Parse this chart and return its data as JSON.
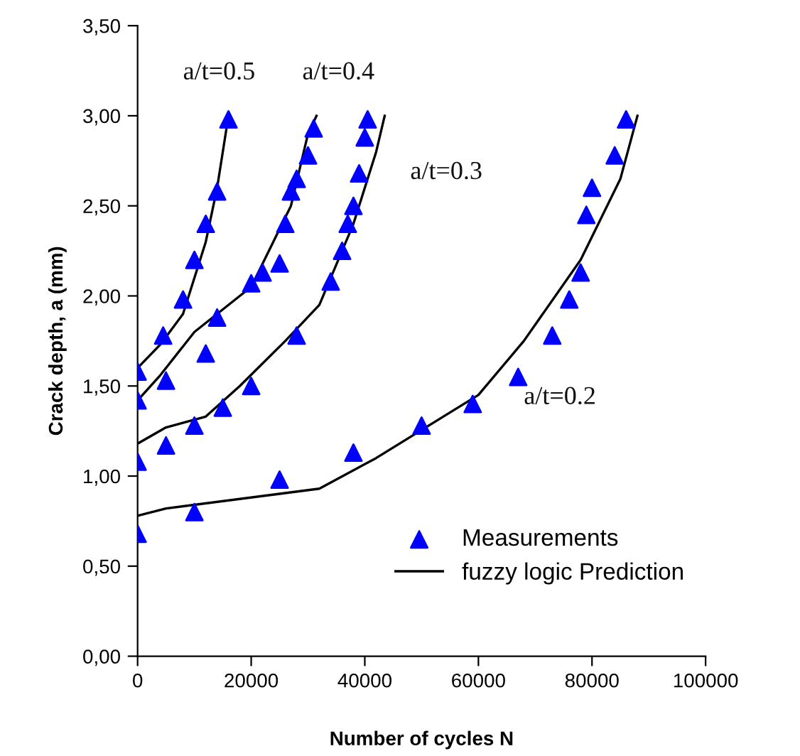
{
  "chart_data": {
    "type": "scatter",
    "xlabel": "Number of cycles N",
    "ylabel": "Crack depth, a (mm)",
    "xlim": [
      0,
      100000
    ],
    "ylim": [
      0,
      3.5
    ],
    "xticks": [
      0,
      20000,
      40000,
      60000,
      80000,
      100000
    ],
    "yticks": [
      {
        "value": 0,
        "label": "0,00"
      },
      {
        "value": 0.5,
        "label": "0,50"
      },
      {
        "value": 1,
        "label": "1,00"
      },
      {
        "value": 1.5,
        "label": "1,50"
      },
      {
        "value": 2,
        "label": "2,00"
      },
      {
        "value": 2.5,
        "label": "2,50"
      },
      {
        "value": 3,
        "label": "3,00"
      },
      {
        "value": 3.5,
        "label": "3,50"
      }
    ],
    "grid": false,
    "legend": "bottom right",
    "series": [
      {
        "name": "Measurements",
        "marker": "triangle",
        "color": "#0000ff",
        "x": [
          0,
          4500,
          8000,
          10000,
          12000,
          14000,
          16000
        ],
        "values": [
          1.58,
          1.78,
          1.98,
          2.2,
          2.4,
          2.58,
          2.98
        ]
      },
      {
        "marker": "triangle",
        "color": "#0000ff",
        "x": [
          0,
          5000,
          12000,
          14000,
          20000,
          22000,
          25000,
          26000,
          27000,
          28000,
          30000,
          31000
        ],
        "values": [
          1.42,
          1.53,
          1.68,
          1.88,
          2.07,
          2.13,
          2.18,
          2.4,
          2.58,
          2.65,
          2.78,
          2.93
        ]
      },
      {
        "marker": "triangle",
        "color": "#0000ff",
        "x": [
          0,
          5000,
          10000,
          15000,
          20000,
          28000,
          34000,
          36000,
          37000,
          38000,
          39000,
          40000,
          40500
        ],
        "values": [
          1.08,
          1.17,
          1.28,
          1.38,
          1.5,
          1.78,
          2.08,
          2.25,
          2.4,
          2.5,
          2.68,
          2.88,
          2.98
        ]
      },
      {
        "marker": "triangle",
        "color": "#0000ff",
        "x": [
          0,
          10000,
          25000,
          38000,
          50000,
          59000,
          67000,
          73000,
          76000,
          78000,
          79000,
          80000,
          84000,
          86000
        ],
        "values": [
          0.68,
          0.8,
          0.98,
          1.13,
          1.28,
          1.4,
          1.55,
          1.78,
          1.98,
          2.13,
          2.45,
          2.6,
          2.78,
          2.98
        ]
      },
      {
        "name": "fuzzy logic Prediction",
        "type": "line",
        "marker": "none",
        "color": "#000000",
        "x": [
          0,
          4000,
          8000,
          12000,
          14000,
          16000
        ],
        "values": [
          1.6,
          1.73,
          1.9,
          2.3,
          2.6,
          3.0
        ]
      },
      {
        "type": "line",
        "marker": "none",
        "color": "#000000",
        "x": [
          0,
          4000,
          10000,
          20000,
          27000,
          30000,
          31500
        ],
        "values": [
          1.42,
          1.56,
          1.8,
          2.05,
          2.5,
          2.9,
          3.0
        ]
      },
      {
        "type": "line",
        "marker": "none",
        "color": "#000000",
        "x": [
          0,
          5000,
          12000,
          18000,
          26000,
          32000,
          34000,
          38000,
          42000,
          43500
        ],
        "values": [
          1.18,
          1.27,
          1.33,
          1.5,
          1.75,
          1.95,
          2.1,
          2.4,
          2.8,
          3.0
        ]
      },
      {
        "type": "line",
        "marker": "none",
        "color": "#000000",
        "x": [
          0,
          5000,
          32000,
          42000,
          60000,
          68000,
          78000,
          85000,
          88000
        ],
        "values": [
          0.78,
          0.82,
          0.93,
          1.1,
          1.45,
          1.75,
          2.2,
          2.65,
          3.0
        ]
      }
    ],
    "annotations": [
      "a/t=0.5",
      "a/t=0.4",
      "a/t=0.3",
      "a/t=0.2"
    ]
  }
}
